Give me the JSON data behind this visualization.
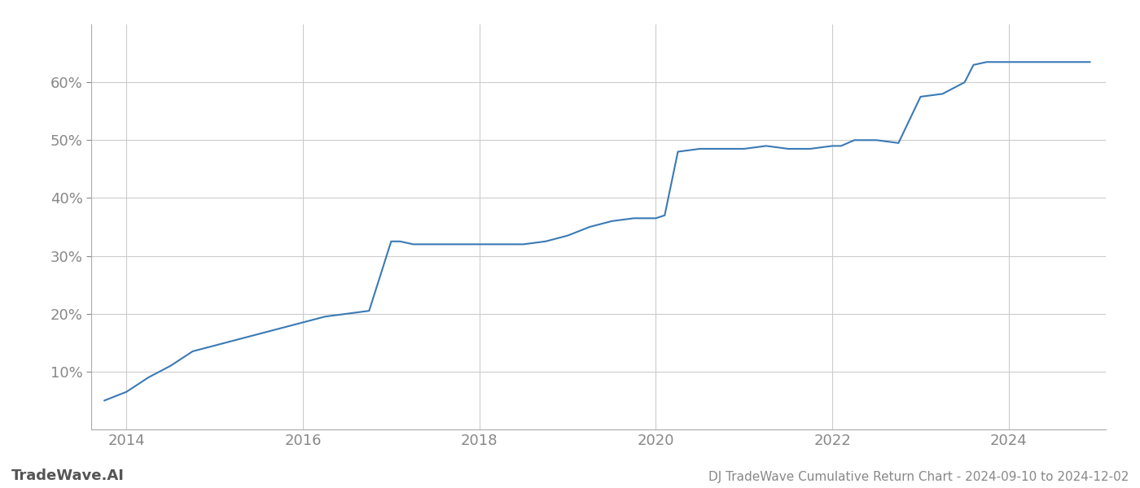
{
  "title": "DJ TradeWave Cumulative Return Chart - 2024-09-10 to 2024-12-02",
  "watermark": "TradeWave.AI",
  "line_color": "#3a7ab5",
  "background_color": "#ffffff",
  "grid_color": "#cccccc",
  "x_values": [
    2013.75,
    2014.0,
    2014.25,
    2014.5,
    2014.75,
    2015.0,
    2015.25,
    2015.5,
    2015.75,
    2016.0,
    2016.25,
    2016.5,
    2016.75,
    2017.0,
    2017.1,
    2017.25,
    2017.5,
    2017.75,
    2018.0,
    2018.25,
    2018.5,
    2018.75,
    2019.0,
    2019.25,
    2019.5,
    2019.75,
    2020.0,
    2020.1,
    2020.25,
    2020.5,
    2020.75,
    2021.0,
    2021.25,
    2021.5,
    2021.75,
    2022.0,
    2022.1,
    2022.25,
    2022.5,
    2022.75,
    2023.0,
    2023.25,
    2023.5,
    2023.6,
    2023.75,
    2024.0,
    2024.25,
    2024.5,
    2024.75,
    2024.92
  ],
  "y_values": [
    5.0,
    6.5,
    9.0,
    11.0,
    13.5,
    14.5,
    15.5,
    16.5,
    17.5,
    18.5,
    19.5,
    20.0,
    20.5,
    32.5,
    32.5,
    32.0,
    32.0,
    32.0,
    32.0,
    32.0,
    32.0,
    32.5,
    33.5,
    35.0,
    36.0,
    36.5,
    36.5,
    37.0,
    48.0,
    48.5,
    48.5,
    48.5,
    49.0,
    48.5,
    48.5,
    49.0,
    49.0,
    50.0,
    50.0,
    49.5,
    57.5,
    58.0,
    60.0,
    63.0,
    63.5,
    63.5,
    63.5,
    63.5,
    63.5,
    63.5
  ],
  "xlim": [
    2013.6,
    2025.1
  ],
  "ylim": [
    0,
    70
  ],
  "yticks": [
    10,
    20,
    30,
    40,
    50,
    60
  ],
  "xticks": [
    2014,
    2016,
    2018,
    2020,
    2022,
    2024
  ],
  "tick_color": "#888888",
  "label_fontsize": 13,
  "title_fontsize": 11,
  "watermark_fontsize": 13,
  "line_width": 1.5
}
